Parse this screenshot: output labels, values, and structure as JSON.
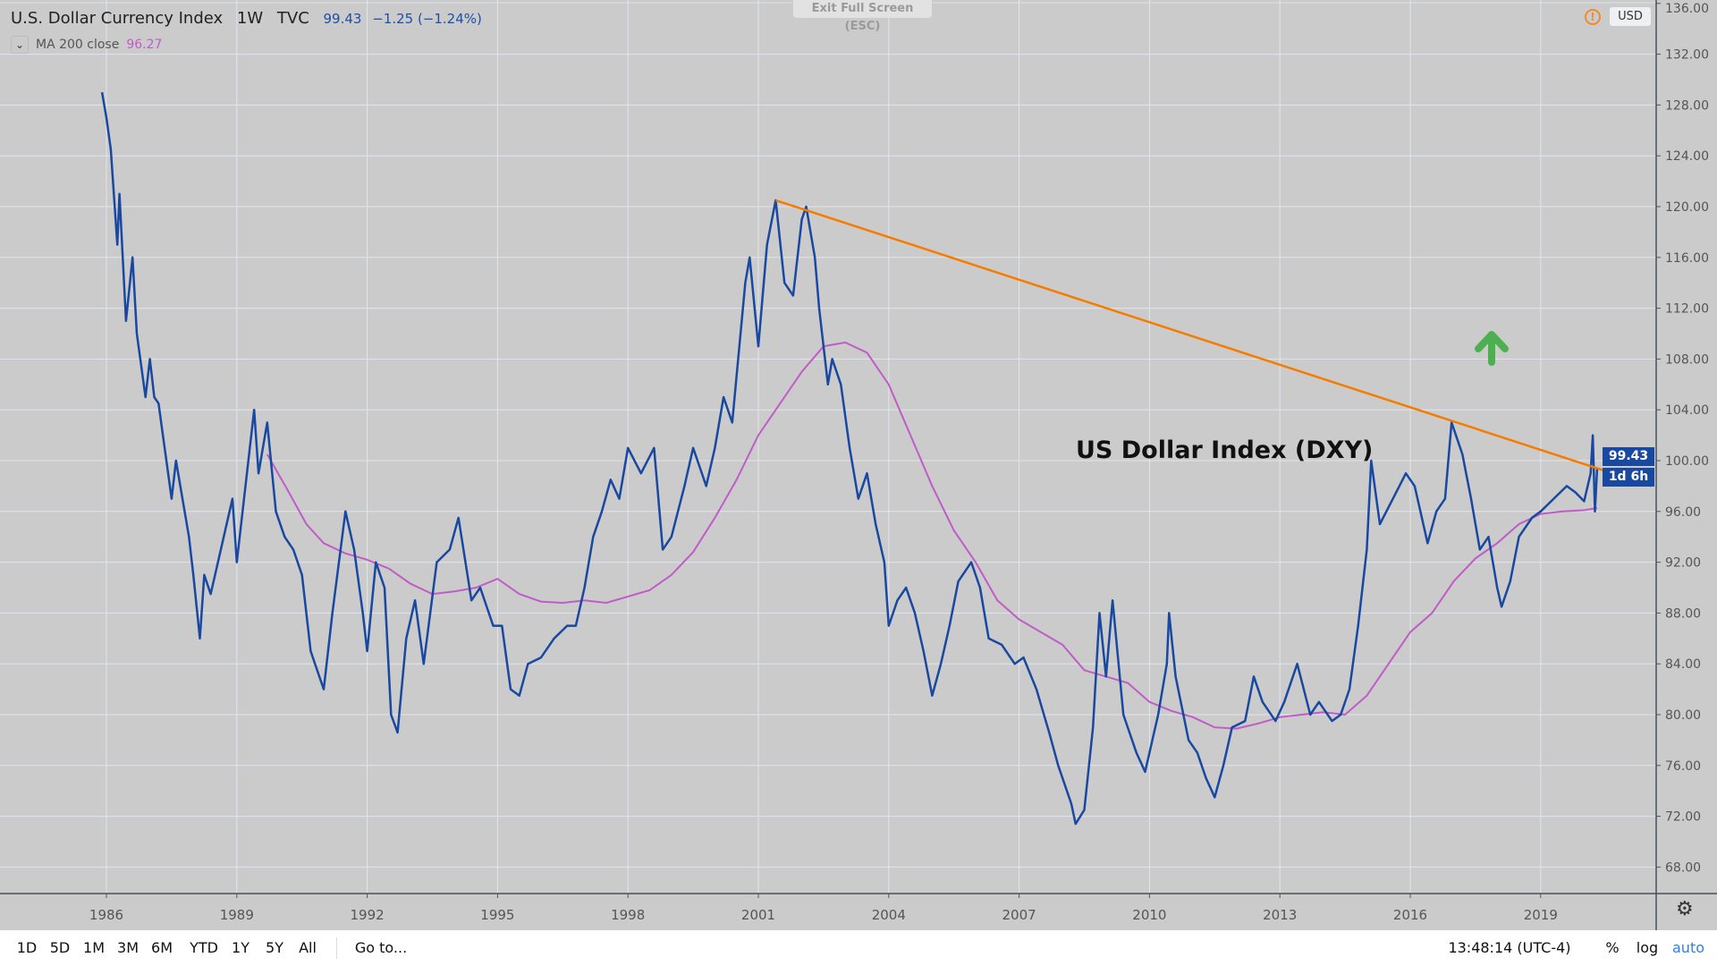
{
  "header": {
    "symbol": "U.S. Dollar Currency Index",
    "interval": "1W",
    "exchange": "TVC",
    "last": "99.43",
    "change": "−1.25 (−1.24%)"
  },
  "indicator": {
    "label": "MA 200 close",
    "value": "96.27"
  },
  "exit_fullscreen": "Exit Full Screen (ESC)",
  "currency": "USD",
  "price_tag": "99.43",
  "countdown": "1d 6h",
  "annotation": "US Dollar Index (DXY)",
  "toolbar": {
    "ranges": [
      "1D",
      "5D",
      "1M",
      "3M",
      "6M",
      "YTD",
      "1Y",
      "5Y",
      "All"
    ],
    "goto": "Go to...",
    "time": "13:48:14 (UTC-4)",
    "percent": "%",
    "log": "log",
    "auto": "auto"
  },
  "colors": {
    "price": "#1848a0",
    "ma": "#c05cc7",
    "trendline": "#f57c00",
    "arrow": "#4caf50",
    "background": "#cbcbcb"
  },
  "chart_data": {
    "type": "line",
    "x_ticks": [
      "1986",
      "1989",
      "1992",
      "1995",
      "1998",
      "2001",
      "2004",
      "2007",
      "2010",
      "2013",
      "2016",
      "2019"
    ],
    "y_ticks": [
      "136.00",
      "132.00",
      "128.00",
      "124.00",
      "120.00",
      "116.00",
      "112.00",
      "108.00",
      "104.00",
      "100.00",
      "96.00",
      "92.00",
      "88.00",
      "84.00",
      "80.00",
      "76.00",
      "72.00",
      "68.00"
    ],
    "ylim": [
      66,
      136
    ],
    "xlim": [
      1983.6,
      2021.55
    ],
    "grid": true,
    "series": [
      {
        "name": "U.S. Dollar Currency Index",
        "points": [
          [
            1985.9,
            129
          ],
          [
            1986.0,
            127
          ],
          [
            1986.1,
            124.5
          ],
          [
            1986.25,
            117
          ],
          [
            1986.3,
            121
          ],
          [
            1986.45,
            111
          ],
          [
            1986.6,
            116
          ],
          [
            1986.7,
            110
          ],
          [
            1986.9,
            105
          ],
          [
            1987.0,
            108
          ],
          [
            1987.1,
            105
          ],
          [
            1987.2,
            104.5
          ],
          [
            1987.5,
            97
          ],
          [
            1987.6,
            100
          ],
          [
            1987.9,
            94
          ],
          [
            1988.0,
            91
          ],
          [
            1988.15,
            86
          ],
          [
            1988.25,
            91
          ],
          [
            1988.4,
            89.5
          ],
          [
            1988.7,
            94
          ],
          [
            1988.9,
            97
          ],
          [
            1989.0,
            92
          ],
          [
            1989.2,
            98
          ],
          [
            1989.4,
            104
          ],
          [
            1989.5,
            99
          ],
          [
            1989.7,
            103
          ],
          [
            1989.9,
            96
          ],
          [
            1990.1,
            94
          ],
          [
            1990.3,
            93
          ],
          [
            1990.5,
            91
          ],
          [
            1990.7,
            85
          ],
          [
            1990.9,
            83
          ],
          [
            1991.0,
            82
          ],
          [
            1991.2,
            88
          ],
          [
            1991.5,
            96
          ],
          [
            1991.7,
            93
          ],
          [
            1991.9,
            88
          ],
          [
            1992.0,
            85
          ],
          [
            1992.2,
            92
          ],
          [
            1992.4,
            90
          ],
          [
            1992.55,
            80
          ],
          [
            1992.7,
            78.6
          ],
          [
            1992.9,
            86
          ],
          [
            1993.1,
            89
          ],
          [
            1993.3,
            84
          ],
          [
            1993.6,
            92
          ],
          [
            1993.9,
            93
          ],
          [
            1994.1,
            95.5
          ],
          [
            1994.4,
            89
          ],
          [
            1994.6,
            90
          ],
          [
            1994.9,
            87
          ],
          [
            1995.1,
            87
          ],
          [
            1995.3,
            82
          ],
          [
            1995.5,
            81.5
          ],
          [
            1995.7,
            84
          ],
          [
            1996.0,
            84.5
          ],
          [
            1996.3,
            86
          ],
          [
            1996.6,
            87
          ],
          [
            1996.8,
            87
          ],
          [
            1997.0,
            90
          ],
          [
            1997.2,
            94
          ],
          [
            1997.4,
            96
          ],
          [
            1997.6,
            98.5
          ],
          [
            1997.8,
            97
          ],
          [
            1998.0,
            101
          ],
          [
            1998.3,
            99
          ],
          [
            1998.6,
            101
          ],
          [
            1998.8,
            93
          ],
          [
            1999.0,
            94
          ],
          [
            1999.3,
            98
          ],
          [
            1999.5,
            101
          ],
          [
            1999.8,
            98
          ],
          [
            2000.0,
            101
          ],
          [
            2000.2,
            105
          ],
          [
            2000.4,
            103
          ],
          [
            2000.7,
            114
          ],
          [
            2000.8,
            116
          ],
          [
            2001.0,
            109
          ],
          [
            2001.2,
            117
          ],
          [
            2001.4,
            120.5
          ],
          [
            2001.6,
            114
          ],
          [
            2001.8,
            113
          ],
          [
            2002.0,
            119
          ],
          [
            2002.1,
            120
          ],
          [
            2002.3,
            116
          ],
          [
            2002.4,
            112
          ],
          [
            2002.6,
            106
          ],
          [
            2002.7,
            108
          ],
          [
            2002.9,
            106
          ],
          [
            2003.1,
            101
          ],
          [
            2003.3,
            97
          ],
          [
            2003.5,
            99
          ],
          [
            2003.7,
            95
          ],
          [
            2003.9,
            92
          ],
          [
            2004.0,
            87
          ],
          [
            2004.2,
            89
          ],
          [
            2004.4,
            90
          ],
          [
            2004.6,
            88
          ],
          [
            2004.8,
            85
          ],
          [
            2005.0,
            81.5
          ],
          [
            2005.2,
            84
          ],
          [
            2005.4,
            87
          ],
          [
            2005.6,
            90.5
          ],
          [
            2005.9,
            92
          ],
          [
            2006.1,
            90
          ],
          [
            2006.3,
            86
          ],
          [
            2006.6,
            85.5
          ],
          [
            2006.9,
            84
          ],
          [
            2007.1,
            84.5
          ],
          [
            2007.4,
            82
          ],
          [
            2007.7,
            78.5
          ],
          [
            2007.9,
            76
          ],
          [
            2008.2,
            73
          ],
          [
            2008.3,
            71.4
          ],
          [
            2008.5,
            72.5
          ],
          [
            2008.7,
            79
          ],
          [
            2008.85,
            88
          ],
          [
            2009.0,
            83
          ],
          [
            2009.15,
            89
          ],
          [
            2009.4,
            80
          ],
          [
            2009.7,
            77
          ],
          [
            2009.9,
            75.5
          ],
          [
            2010.2,
            80
          ],
          [
            2010.4,
            84
          ],
          [
            2010.45,
            88
          ],
          [
            2010.6,
            83
          ],
          [
            2010.9,
            78
          ],
          [
            2011.1,
            77
          ],
          [
            2011.3,
            75
          ],
          [
            2011.5,
            73.5
          ],
          [
            2011.7,
            76
          ],
          [
            2011.9,
            79
          ],
          [
            2012.2,
            79.5
          ],
          [
            2012.4,
            83
          ],
          [
            2012.6,
            81
          ],
          [
            2012.9,
            79.5
          ],
          [
            2013.1,
            81
          ],
          [
            2013.4,
            84
          ],
          [
            2013.7,
            80
          ],
          [
            2013.9,
            81
          ],
          [
            2014.2,
            79.5
          ],
          [
            2014.4,
            80
          ],
          [
            2014.6,
            82
          ],
          [
            2014.8,
            87
          ],
          [
            2015.0,
            93
          ],
          [
            2015.1,
            100
          ],
          [
            2015.3,
            95
          ],
          [
            2015.6,
            97
          ],
          [
            2015.9,
            99
          ],
          [
            2016.1,
            98
          ],
          [
            2016.4,
            93.5
          ],
          [
            2016.6,
            96
          ],
          [
            2016.8,
            97
          ],
          [
            2016.95,
            103
          ],
          [
            2017.2,
            100.5
          ],
          [
            2017.4,
            97
          ],
          [
            2017.6,
            93
          ],
          [
            2017.8,
            94
          ],
          [
            2018.0,
            90
          ],
          [
            2018.1,
            88.5
          ],
          [
            2018.3,
            90.5
          ],
          [
            2018.5,
            94
          ],
          [
            2018.8,
            95.5
          ],
          [
            2019.0,
            96
          ],
          [
            2019.3,
            97
          ],
          [
            2019.6,
            98
          ],
          [
            2019.8,
            97.5
          ],
          [
            2020.0,
            96.8
          ],
          [
            2020.15,
            99
          ],
          [
            2020.2,
            102
          ],
          [
            2020.25,
            96
          ],
          [
            2020.3,
            99.43
          ]
        ]
      },
      {
        "name": "MA 200 close",
        "points": [
          [
            1989.7,
            100.5
          ],
          [
            1990.2,
            97.5
          ],
          [
            1990.6,
            95
          ],
          [
            1991.0,
            93.5
          ],
          [
            1991.5,
            92.7
          ],
          [
            1992.0,
            92.2
          ],
          [
            1992.5,
            91.5
          ],
          [
            1993.0,
            90.3
          ],
          [
            1993.5,
            89.5
          ],
          [
            1994.0,
            89.7
          ],
          [
            1994.5,
            90
          ],
          [
            1995.0,
            90.7
          ],
          [
            1995.5,
            89.5
          ],
          [
            1996.0,
            88.9
          ],
          [
            1996.5,
            88.8
          ],
          [
            1997.0,
            89.0
          ],
          [
            1997.5,
            88.8
          ],
          [
            1998.0,
            89.3
          ],
          [
            1998.5,
            89.8
          ],
          [
            1999.0,
            91.0
          ],
          [
            1999.5,
            92.8
          ],
          [
            2000.0,
            95.5
          ],
          [
            2000.5,
            98.5
          ],
          [
            2001.0,
            102
          ],
          [
            2001.5,
            104.5
          ],
          [
            2002.0,
            107
          ],
          [
            2002.5,
            109
          ],
          [
            2003.0,
            109.3
          ],
          [
            2003.5,
            108.5
          ],
          [
            2004.0,
            106
          ],
          [
            2004.5,
            102
          ],
          [
            2005.0,
            98
          ],
          [
            2005.5,
            94.5
          ],
          [
            2006.0,
            92
          ],
          [
            2006.5,
            89
          ],
          [
            2007.0,
            87.5
          ],
          [
            2007.5,
            86.5
          ],
          [
            2008.0,
            85.5
          ],
          [
            2008.5,
            83.5
          ],
          [
            2009.0,
            83
          ],
          [
            2009.5,
            82.5
          ],
          [
            2010.0,
            81
          ],
          [
            2010.5,
            80.3
          ],
          [
            2011.0,
            79.8
          ],
          [
            2011.5,
            79
          ],
          [
            2012.0,
            78.9
          ],
          [
            2012.5,
            79.3
          ],
          [
            2013.0,
            79.8
          ],
          [
            2013.5,
            80
          ],
          [
            2014.0,
            80.2
          ],
          [
            2014.5,
            80
          ],
          [
            2015.0,
            81.5
          ],
          [
            2015.5,
            84
          ],
          [
            2016.0,
            86.5
          ],
          [
            2016.5,
            88
          ],
          [
            2017.0,
            90.5
          ],
          [
            2017.5,
            92.3
          ],
          [
            2018.0,
            93.5
          ],
          [
            2018.5,
            95
          ],
          [
            2019.0,
            95.8
          ],
          [
            2019.5,
            96
          ],
          [
            2020.0,
            96.1
          ],
          [
            2020.3,
            96.27
          ]
        ]
      }
    ],
    "trendline": [
      [
        2001.4,
        120.5
      ],
      [
        2021.55,
        98.0
      ]
    ]
  }
}
